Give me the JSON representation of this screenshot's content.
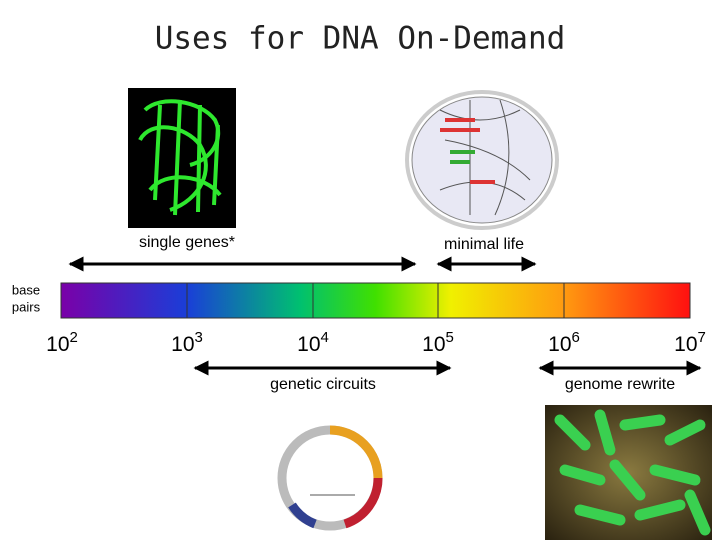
{
  "title": "Uses for DNA On-Demand",
  "upper_labels": [
    "single genes*",
    "minimal life"
  ],
  "axis_label": [
    "base",
    "pairs"
  ],
  "scale": [
    {
      "base": "10",
      "exp": "2"
    },
    {
      "base": "10",
      "exp": "3"
    },
    {
      "base": "10",
      "exp": "4"
    },
    {
      "base": "10",
      "exp": "5"
    },
    {
      "base": "10",
      "exp": "6"
    },
    {
      "base": "10",
      "exp": "7"
    }
  ],
  "lower_labels": [
    "genetic circuits",
    "genome rewrite"
  ]
}
